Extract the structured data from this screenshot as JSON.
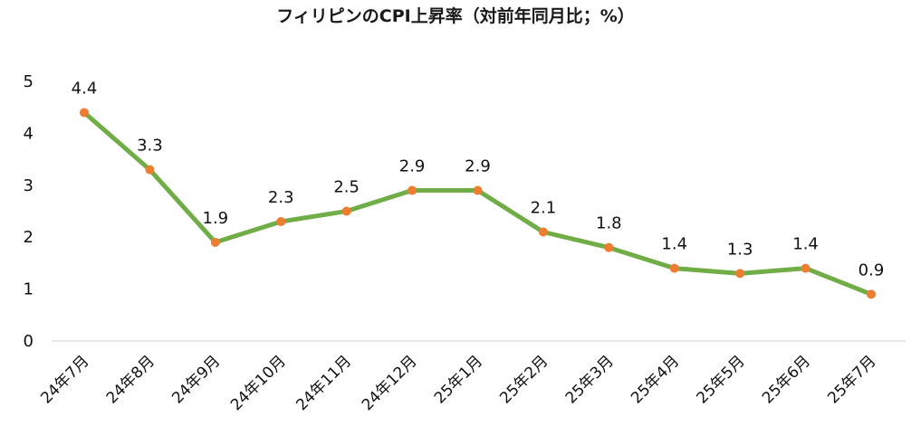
{
  "chart_data": {
    "type": "line",
    "title": "フィリピンのCPI上昇率（対前年同月比；%）",
    "xlabel": "",
    "ylabel": "",
    "categories": [
      "24年7月",
      "24年8月",
      "24年9月",
      "24年10月",
      "24年11月",
      "24年12月",
      "25年1月",
      "25年2月",
      "25年3月",
      "25年4月",
      "25年5月",
      "25年6月",
      "25年7月"
    ],
    "series": [
      {
        "values": [
          4.4,
          3.3,
          1.9,
          2.3,
          2.5,
          2.9,
          2.9,
          2.1,
          1.8,
          1.4,
          1.3,
          1.4,
          0.9
        ]
      }
    ],
    "data_labels": [
      "4.4",
      "3.3",
      "1.9",
      "2.3",
      "2.5",
      "2.9",
      "2.9",
      "2.1",
      "1.8",
      "1.4",
      "1.3",
      "1.4",
      "0.9"
    ],
    "yticks": [
      "0",
      "1",
      "2",
      "3",
      "4",
      "5"
    ],
    "ylim": [
      0,
      5
    ],
    "grid": false,
    "legend": "none",
    "colors": {
      "line": "#70AD47",
      "marker": "#ED7D31",
      "axis": "#D9D9D9"
    }
  }
}
